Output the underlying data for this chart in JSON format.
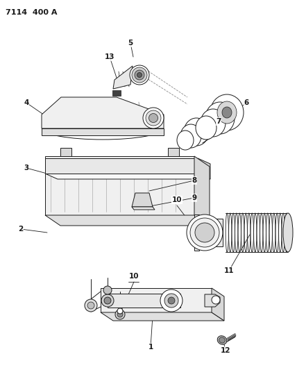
{
  "title": "7114  400 A",
  "bg_color": "#ffffff",
  "lc": "#1a1a1a",
  "fig_width": 4.28,
  "fig_height": 5.33,
  "dpi": 100
}
